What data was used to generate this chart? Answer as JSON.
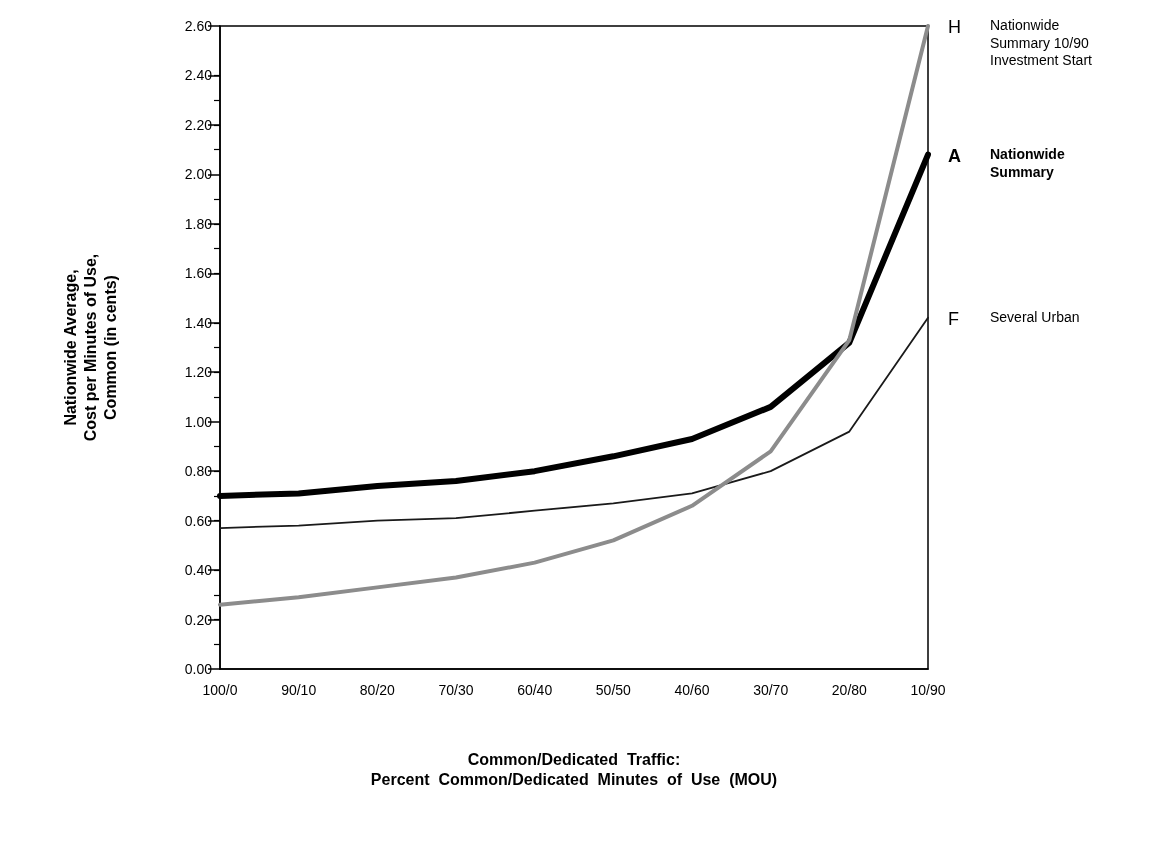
{
  "chart_data": {
    "type": "line",
    "xlabel": "Common/Dedicated  Traffic:\nPercent  Common/Dedicated  Minutes  of  Use  (MOU)",
    "ylabel": "Nationwide Average,\nCost per Minutes of Use,\nCommon (in cents)",
    "categories": [
      "100/0",
      "90/10",
      "80/20",
      "70/30",
      "60/40",
      "50/50",
      "40/60",
      "30/70",
      "20/80",
      "10/90"
    ],
    "series": [
      {
        "name": "H Nationwide Summary 10/90 Investment Start",
        "color": "#8c8c8c",
        "values": [
          0.26,
          0.29,
          0.33,
          0.37,
          0.43,
          0.52,
          0.66,
          0.88,
          1.33,
          2.6
        ]
      },
      {
        "name": "F Several Urban",
        "color": "#1a1a1a",
        "values": [
          0.57,
          0.58,
          0.6,
          0.61,
          0.64,
          0.67,
          0.71,
          0.8,
          0.96,
          1.42
        ]
      },
      {
        "name": "A Nationwide Summary",
        "color": "#000000",
        "values": [
          0.7,
          0.71,
          0.74,
          0.76,
          0.8,
          0.86,
          0.93,
          1.06,
          1.32,
          2.08
        ]
      }
    ],
    "ylim": [
      0,
      2.6
    ],
    "yticks": [
      {
        "value": 0,
        "label": "0.00"
      },
      {
        "value": 0.2,
        "label": "0.20"
      },
      {
        "value": 0.4,
        "label": "0.40"
      },
      {
        "value": 0.6,
        "label": "0.60"
      },
      {
        "value": 0.8,
        "label": "0.80"
      },
      {
        "value": 1,
        "label": "1.00"
      },
      {
        "value": 1.2,
        "label": "1.20"
      },
      {
        "value": 1.4,
        "label": "1.40"
      },
      {
        "value": 1.6,
        "label": "1.60"
      },
      {
        "value": 1.8,
        "label": "1.80"
      },
      {
        "value": 2,
        "label": "2.00"
      },
      {
        "value": 2.2,
        "label": "2.20"
      },
      {
        "value": 2.4,
        "label": "2.40"
      },
      {
        "value": 2.6,
        "label": "2.60"
      }
    ],
    "grid": false,
    "marker": "none",
    "line_style": "solid"
  }
}
